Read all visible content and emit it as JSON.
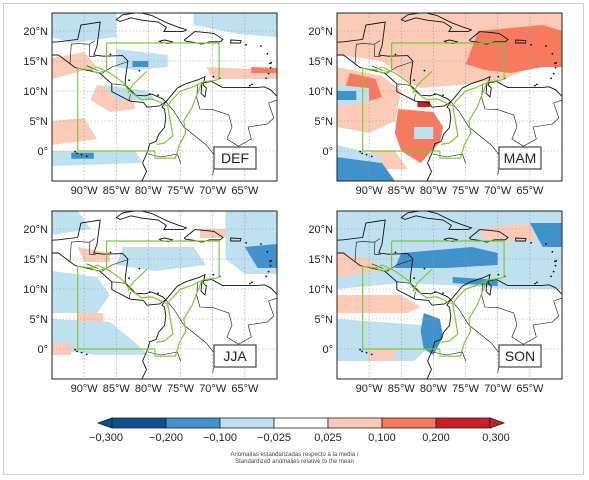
{
  "panels": [
    {
      "id": "def",
      "season": "DEF"
    },
    {
      "id": "mam",
      "season": "MAM"
    },
    {
      "id": "jja",
      "season": "JJA"
    },
    {
      "id": "son",
      "season": "SON"
    }
  ],
  "lat_ticks": [
    "20°N",
    "15°N",
    "10°N",
    "5°N",
    "0°"
  ],
  "lon_ticks": [
    "90°W",
    "85°W",
    "80°W",
    "75°W",
    "70°W",
    "65°W"
  ],
  "colorbar": {
    "labels": [
      "−0,300",
      "−0,200",
      "−0,100",
      "−0,025",
      "0,025",
      "0,100",
      "0,200",
      "0,300"
    ],
    "colors": [
      "#0f4f93",
      "#3f92cc",
      "#bfe0f0",
      "#ffffff",
      "#fccbb7",
      "#f77a5e",
      "#c81e26"
    ],
    "caption_line1": "Anomalías estandarizadas respecto a la media /",
    "caption_line2": "Standardized anomalies relative to the mean"
  },
  "colors": {
    "land_outline": "#111111",
    "box_outline": "#7dc832",
    "grid": "#999999"
  }
}
